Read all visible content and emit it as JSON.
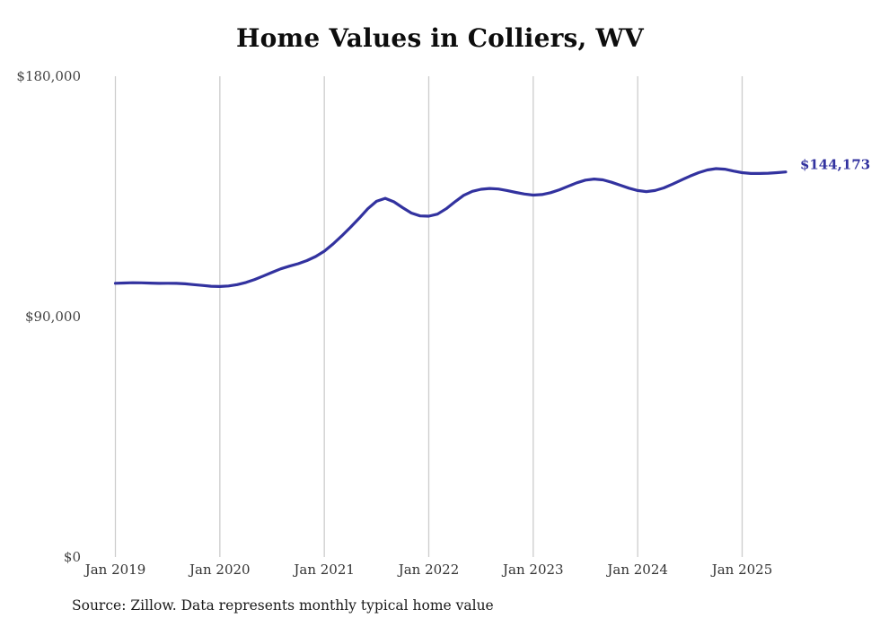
{
  "chart_data": {
    "type": "line",
    "title": "Home Values in Colliers, WV",
    "source": "Source: Zillow. Data represents monthly typical home value",
    "x_tick_labels": [
      "Jan 2019",
      "Jan 2020",
      "Jan 2021",
      "Jan 2022",
      "Jan 2023",
      "Jan 2024",
      "Jan 2025"
    ],
    "y_ticks": [
      0,
      90000,
      180000
    ],
    "y_tick_labels": [
      "$0",
      "$90,000",
      "$180,000"
    ],
    "ylim": [
      0,
      180000
    ],
    "x_start": "2019-01",
    "x_end": "2025-06",
    "interval": "monthly",
    "grid": "vertical-only",
    "legend_position": "none",
    "end_label": "$144,173",
    "final_value": 144173,
    "line_color": "#32329f",
    "grid_color": "#cccccc",
    "series": [
      {
        "name": "Typical home value",
        "values": [
          102500,
          102600,
          102700,
          102650,
          102550,
          102450,
          102500,
          102450,
          102300,
          102000,
          101700,
          101400,
          101300,
          101500,
          102000,
          102800,
          103900,
          105200,
          106600,
          107900,
          108900,
          109800,
          111000,
          112500,
          114500,
          117200,
          120200,
          123400,
          126800,
          130400,
          133200,
          134300,
          133000,
          130800,
          128800,
          127700,
          127600,
          128400,
          130400,
          133000,
          135400,
          136900,
          137700,
          138000,
          137800,
          137200,
          136500,
          135900,
          135500,
          135700,
          136400,
          137500,
          138800,
          140100,
          141100,
          141500,
          141200,
          140300,
          139200,
          138100,
          137200,
          136800,
          137200,
          138200,
          139600,
          141100,
          142600,
          143900,
          144900,
          145400,
          145200,
          144500,
          143900,
          143600,
          143600,
          143700,
          143900,
          144173
        ]
      }
    ]
  }
}
